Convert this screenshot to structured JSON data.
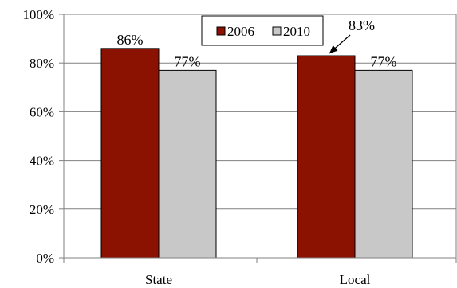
{
  "chart_data": {
    "type": "bar",
    "categories": [
      "State",
      "Local"
    ],
    "series": [
      {
        "name": "2006",
        "values": [
          86,
          83
        ],
        "labels": [
          "86%",
          "83%"
        ],
        "color": "#8B1100"
      },
      {
        "name": "2010",
        "values": [
          77,
          77
        ],
        "labels": [
          "77%",
          "77%"
        ],
        "color": "#C8C8C8"
      }
    ],
    "ylim": [
      0,
      100
    ],
    "yticks": [
      0,
      20,
      40,
      60,
      80,
      100
    ],
    "ytick_labels": [
      "0%",
      "20%",
      "40%",
      "60%",
      "80%",
      "100%"
    ],
    "grid": true,
    "legend_position": "top-center",
    "annotations": [
      {
        "text": "83%",
        "points_to": "Local 2006"
      }
    ]
  }
}
